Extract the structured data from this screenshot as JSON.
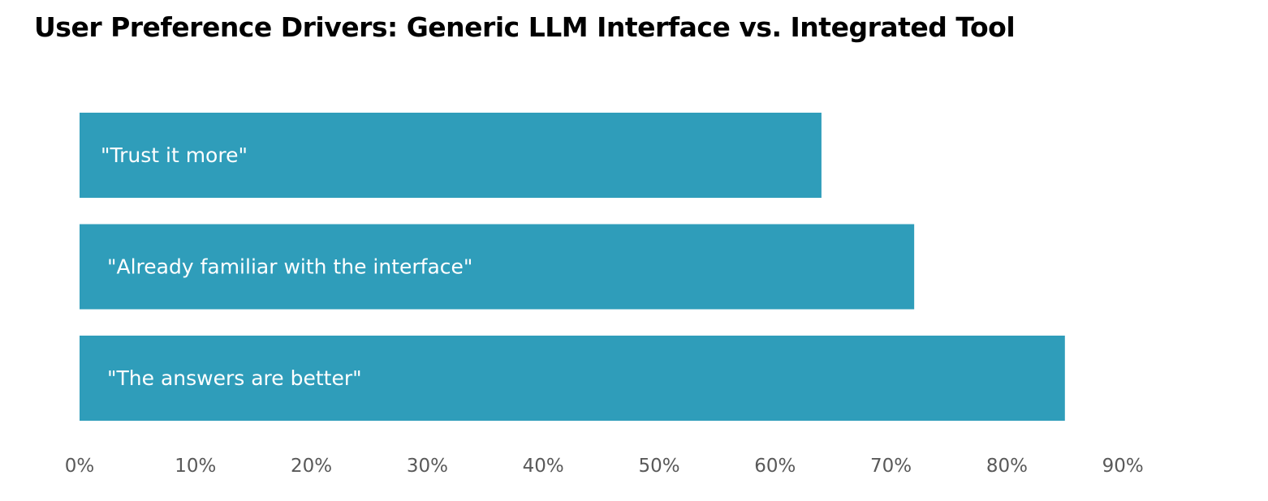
{
  "chart_data": {
    "type": "bar",
    "orientation": "horizontal",
    "title": "User Preference Drivers: Generic LLM Interface vs. Integrated Tool",
    "xlabel": "",
    "ylabel": "",
    "categories": [
      "\"Trust it more\"",
      "\"Already familiar with the interface\"",
      "\"The answers are better\""
    ],
    "values": [
      64,
      72,
      85
    ],
    "value_unit": "%",
    "xlim": [
      0,
      90
    ],
    "xticks": [
      0,
      10,
      20,
      30,
      40,
      50,
      60,
      70,
      80,
      90
    ],
    "xtick_labels": [
      "0%",
      "10%",
      "20%",
      "30%",
      "40%",
      "50%",
      "60%",
      "70%",
      "80%",
      "90%"
    ],
    "grid": false,
    "legend": "none",
    "bar_color": "#2f9dba",
    "label_color": "#ffffff",
    "tick_color": "#595959"
  }
}
